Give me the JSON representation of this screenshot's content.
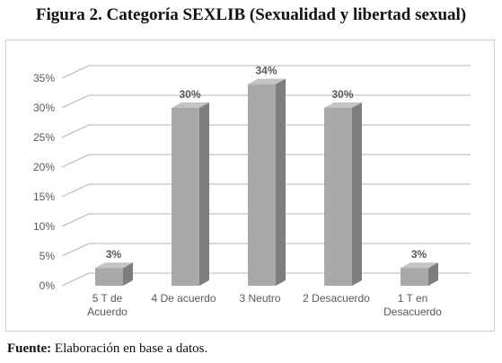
{
  "figure_title": "Figura 2. Categoría SEXLIB (Sexualidad y libertad sexual)",
  "source": {
    "label": "Fuente:",
    "text": " Elaboración en base a datos."
  },
  "colors": {
    "bar_front": "#a9a9a9",
    "bar_side": "#7e7e7e",
    "bar_top": "#c4c4c4",
    "grid": "#b5b5b5",
    "text": "#595959"
  },
  "chart_data": {
    "type": "bar",
    "style": "3d-column",
    "categories": [
      [
        "5 T de",
        "Acuerdo"
      ],
      [
        "4 De acuerdo"
      ],
      [
        "3 Neutro"
      ],
      [
        "2 Desacuerdo"
      ],
      [
        "1 T en",
        "Desacuerdo"
      ]
    ],
    "values": [
      3,
      30,
      34,
      30,
      3
    ],
    "data_labels": [
      "3%",
      "30%",
      "34%",
      "30%",
      "3%"
    ],
    "ylim": [
      0,
      35
    ],
    "yticks": [
      0,
      5,
      10,
      15,
      20,
      25,
      30,
      35
    ],
    "ytick_labels": [
      "0%",
      "5%",
      "10%",
      "15%",
      "20%",
      "25%",
      "30%",
      "35%"
    ],
    "grid": true,
    "legend": false,
    "title": "",
    "xlabel": "",
    "ylabel": ""
  }
}
